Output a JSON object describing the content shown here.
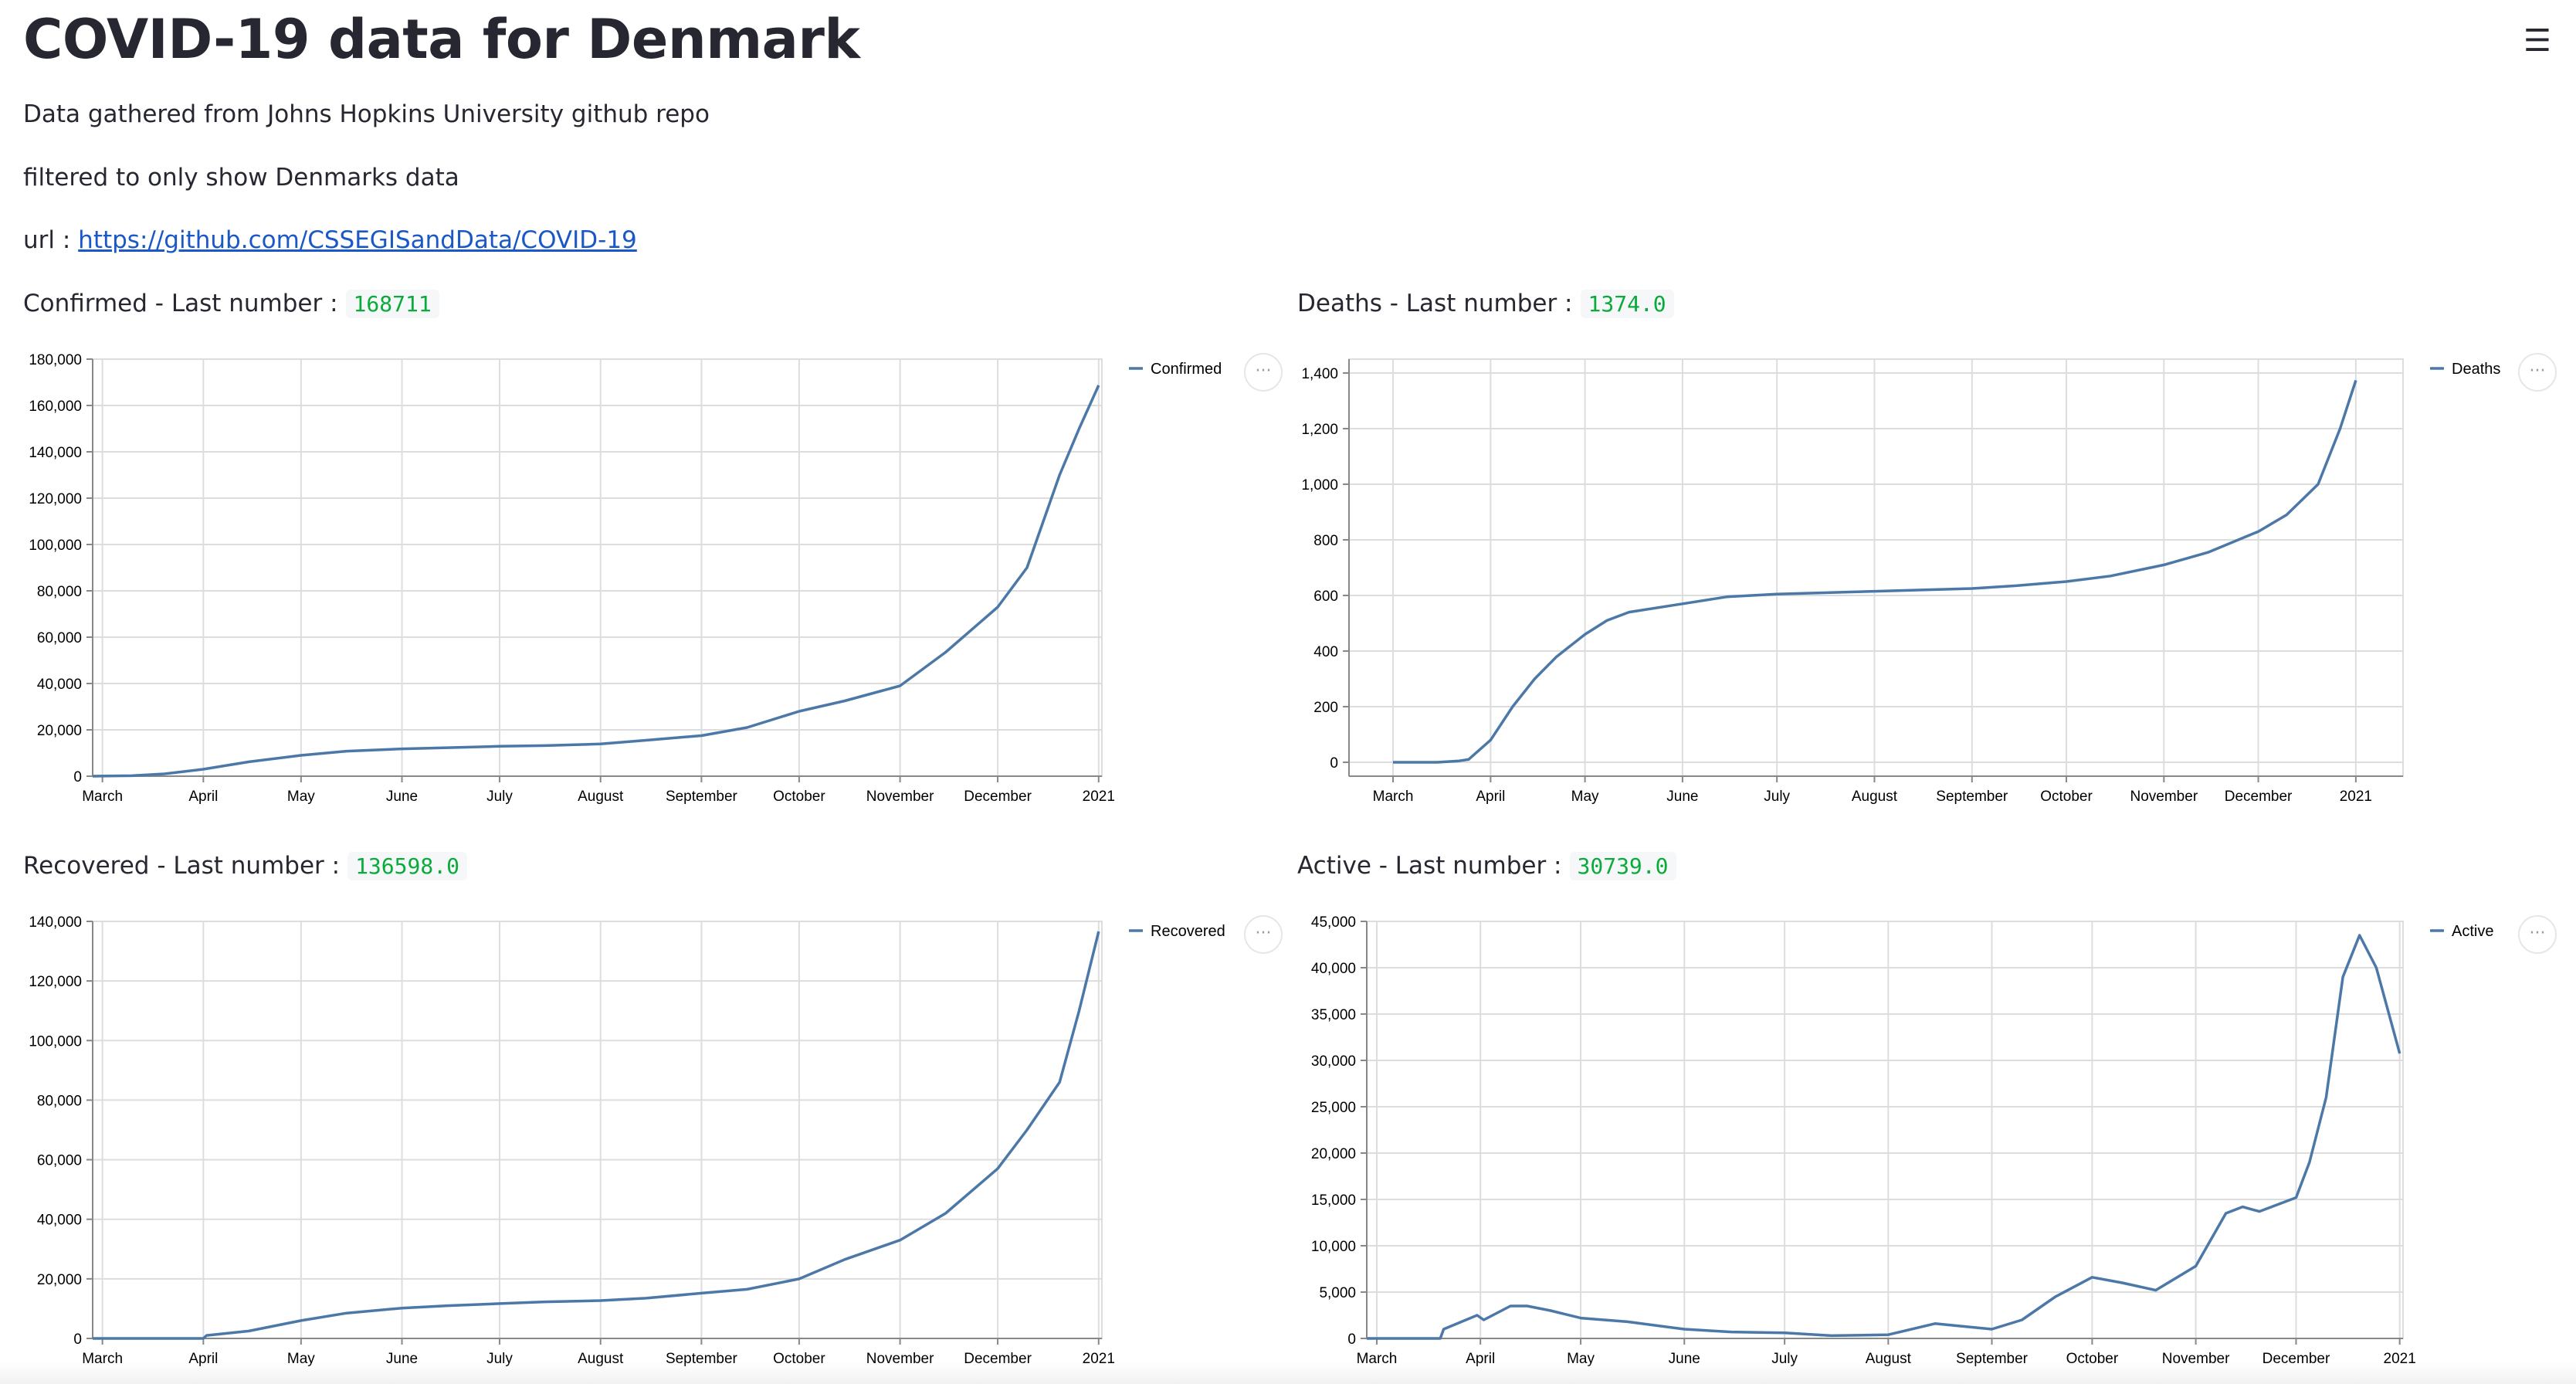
{
  "page": {
    "title": "COVID-19 data for Denmark",
    "lines": [
      "Data gathered from Johns Hopkins University github repo",
      "filtered to only show Denmarks data"
    ],
    "url_label": "url :",
    "url": "https://github.com/CSSEGISandData/COVID-19",
    "menu_icon": "hamburger-icon",
    "chart_menu_icon": "ellipsis-icon",
    "chart_menu_glyph": "···"
  },
  "style": {
    "line_color": "#4c78a8",
    "code_color": "#09ab3b",
    "link_color": "#1a57c7"
  },
  "chart_data": [
    {
      "type": "line",
      "header": "Confirmed - Last number :",
      "last_number": "168711",
      "series": [
        {
          "name": "Confirmed",
          "points": [
            [
              "2020-02-27",
              0
            ],
            [
              "2020-03-10",
              200
            ],
            [
              "2020-03-20",
              1000
            ],
            [
              "2020-04-01",
              3000
            ],
            [
              "2020-04-15",
              6200
            ],
            [
              "2020-05-01",
              9000
            ],
            [
              "2020-05-15",
              10800
            ],
            [
              "2020-06-01",
              11800
            ],
            [
              "2020-06-15",
              12300
            ],
            [
              "2020-07-01",
              12900
            ],
            [
              "2020-07-15",
              13200
            ],
            [
              "2020-08-01",
              13900
            ],
            [
              "2020-08-15",
              15500
            ],
            [
              "2020-09-01",
              17500
            ],
            [
              "2020-09-15",
              21000
            ],
            [
              "2020-10-01",
              28000
            ],
            [
              "2020-10-15",
              32500
            ],
            [
              "2020-11-01",
              39000
            ],
            [
              "2020-11-15",
              53500
            ],
            [
              "2020-12-01",
              73000
            ],
            [
              "2020-12-10",
              90000
            ],
            [
              "2020-12-15",
              110000
            ],
            [
              "2020-12-20",
              130000
            ],
            [
              "2020-12-26",
              150000
            ],
            [
              "2021-01-01",
              168711
            ]
          ]
        }
      ],
      "xticks": [
        [
          "2020-03-01",
          "March"
        ],
        [
          "2020-04-01",
          "April"
        ],
        [
          "2020-05-01",
          "May"
        ],
        [
          "2020-06-01",
          "June"
        ],
        [
          "2020-07-01",
          "July"
        ],
        [
          "2020-08-01",
          "August"
        ],
        [
          "2020-09-01",
          "September"
        ],
        [
          "2020-10-01",
          "October"
        ],
        [
          "2020-11-01",
          "November"
        ],
        [
          "2020-12-01",
          "December"
        ],
        [
          "2021-01-01",
          "2021"
        ]
      ],
      "yticks": [
        0,
        20000,
        40000,
        60000,
        80000,
        100000,
        120000,
        140000,
        160000,
        180000
      ],
      "ytick_labels": [
        "0",
        "20,000",
        "40,000",
        "60,000",
        "80,000",
        "100,000",
        "120,000",
        "140,000",
        "160,000",
        "180,000"
      ],
      "xlim": [
        "2020-02-27",
        "2021-01-02"
      ],
      "ylim": [
        0,
        180000
      ],
      "grid": true,
      "legend": "top-right"
    },
    {
      "type": "line",
      "header": "Deaths - Last number :",
      "last_number": "1374.0",
      "series": [
        {
          "name": "Deaths",
          "points": [
            [
              "2020-03-01",
              0
            ],
            [
              "2020-03-15",
              0
            ],
            [
              "2020-03-22",
              5
            ],
            [
              "2020-03-25",
              10
            ],
            [
              "2020-04-01",
              80
            ],
            [
              "2020-04-08",
              200
            ],
            [
              "2020-04-15",
              300
            ],
            [
              "2020-04-22",
              380
            ],
            [
              "2020-05-01",
              460
            ],
            [
              "2020-05-08",
              510
            ],
            [
              "2020-05-15",
              540
            ],
            [
              "2020-06-01",
              570
            ],
            [
              "2020-06-15",
              595
            ],
            [
              "2020-07-01",
              605
            ],
            [
              "2020-08-01",
              615
            ],
            [
              "2020-09-01",
              625
            ],
            [
              "2020-09-15",
              635
            ],
            [
              "2020-10-01",
              650
            ],
            [
              "2020-10-15",
              670
            ],
            [
              "2020-11-01",
              710
            ],
            [
              "2020-11-15",
              755
            ],
            [
              "2020-12-01",
              830
            ],
            [
              "2020-12-10",
              890
            ],
            [
              "2020-12-20",
              1000
            ],
            [
              "2020-12-27",
              1200
            ],
            [
              "2021-01-01",
              1374
            ]
          ]
        }
      ],
      "xticks": [
        [
          "2020-03-01",
          "March"
        ],
        [
          "2020-04-01",
          "April"
        ],
        [
          "2020-05-01",
          "May"
        ],
        [
          "2020-06-01",
          "June"
        ],
        [
          "2020-07-01",
          "July"
        ],
        [
          "2020-08-01",
          "August"
        ],
        [
          "2020-09-01",
          "September"
        ],
        [
          "2020-10-01",
          "October"
        ],
        [
          "2020-11-01",
          "November"
        ],
        [
          "2020-12-01",
          "December"
        ],
        [
          "2021-01-01",
          "2021"
        ]
      ],
      "yticks": [
        0,
        200,
        400,
        600,
        800,
        1000,
        1200,
        1400
      ],
      "ytick_labels": [
        "0",
        "200",
        "400",
        "600",
        "800",
        "1,000",
        "1,200",
        "1,400"
      ],
      "xlim": [
        "2020-02-16",
        "2021-01-16"
      ],
      "ylim": [
        -50,
        1450
      ],
      "grid": true,
      "legend": "top-right"
    },
    {
      "type": "line",
      "header": "Recovered - Last number :",
      "last_number": "136598.0",
      "series": [
        {
          "name": "Recovered",
          "points": [
            [
              "2020-02-27",
              0
            ],
            [
              "2020-04-01",
              0
            ],
            [
              "2020-04-02",
              1000
            ],
            [
              "2020-04-15",
              2500
            ],
            [
              "2020-05-01",
              6000
            ],
            [
              "2020-05-15",
              8500
            ],
            [
              "2020-06-01",
              10200
            ],
            [
              "2020-06-15",
              11000
            ],
            [
              "2020-07-01",
              11700
            ],
            [
              "2020-07-15",
              12300
            ],
            [
              "2020-08-01",
              12700
            ],
            [
              "2020-08-15",
              13500
            ],
            [
              "2020-09-01",
              15200
            ],
            [
              "2020-09-15",
              16500
            ],
            [
              "2020-10-01",
              20000
            ],
            [
              "2020-10-15",
              26500
            ],
            [
              "2020-11-01",
              33000
            ],
            [
              "2020-11-15",
              42000
            ],
            [
              "2020-12-01",
              57000
            ],
            [
              "2020-12-10",
              70000
            ],
            [
              "2020-12-20",
              86000
            ],
            [
              "2020-12-26",
              110000
            ],
            [
              "2021-01-01",
              136598
            ]
          ]
        }
      ],
      "xticks": [
        [
          "2020-03-01",
          "March"
        ],
        [
          "2020-04-01",
          "April"
        ],
        [
          "2020-05-01",
          "May"
        ],
        [
          "2020-06-01",
          "June"
        ],
        [
          "2020-07-01",
          "July"
        ],
        [
          "2020-08-01",
          "August"
        ],
        [
          "2020-09-01",
          "September"
        ],
        [
          "2020-10-01",
          "October"
        ],
        [
          "2020-11-01",
          "November"
        ],
        [
          "2020-12-01",
          "December"
        ],
        [
          "2021-01-01",
          "2021"
        ]
      ],
      "yticks": [
        0,
        20000,
        40000,
        60000,
        80000,
        100000,
        120000,
        140000
      ],
      "ytick_labels": [
        "0",
        "20,000",
        "40,000",
        "60,000",
        "80,000",
        "100,000",
        "120,000",
        "140,000"
      ],
      "xlim": [
        "2020-02-27",
        "2021-01-02"
      ],
      "ylim": [
        0,
        140000
      ],
      "grid": true,
      "legend": "top-right"
    },
    {
      "type": "line",
      "header": "Active - Last number :",
      "last_number": "30739.0",
      "series": [
        {
          "name": "Active",
          "points": [
            [
              "2020-02-27",
              0
            ],
            [
              "2020-03-20",
              0
            ],
            [
              "2020-03-21",
              1000
            ],
            [
              "2020-03-31",
              2500
            ],
            [
              "2020-04-02",
              2000
            ],
            [
              "2020-04-10",
              3500
            ],
            [
              "2020-04-15",
              3500
            ],
            [
              "2020-04-22",
              3000
            ],
            [
              "2020-05-01",
              2200
            ],
            [
              "2020-05-15",
              1800
            ],
            [
              "2020-06-01",
              1000
            ],
            [
              "2020-06-15",
              700
            ],
            [
              "2020-07-01",
              600
            ],
            [
              "2020-07-15",
              300
            ],
            [
              "2020-08-01",
              400
            ],
            [
              "2020-08-15",
              1600
            ],
            [
              "2020-09-01",
              1000
            ],
            [
              "2020-09-10",
              2000
            ],
            [
              "2020-09-20",
              4500
            ],
            [
              "2020-10-01",
              6600
            ],
            [
              "2020-10-10",
              6000
            ],
            [
              "2020-10-20",
              5200
            ],
            [
              "2020-11-01",
              7800
            ],
            [
              "2020-11-10",
              13500
            ],
            [
              "2020-11-15",
              14200
            ],
            [
              "2020-11-20",
              13700
            ],
            [
              "2020-12-01",
              15200
            ],
            [
              "2020-12-05",
              19000
            ],
            [
              "2020-12-10",
              26000
            ],
            [
              "2020-12-15",
              39000
            ],
            [
              "2020-12-20",
              43500
            ],
            [
              "2020-12-25",
              40000
            ],
            [
              "2021-01-01",
              30739
            ]
          ]
        }
      ],
      "xticks": [
        [
          "2020-03-01",
          "March"
        ],
        [
          "2020-04-01",
          "April"
        ],
        [
          "2020-05-01",
          "May"
        ],
        [
          "2020-06-01",
          "June"
        ],
        [
          "2020-07-01",
          "July"
        ],
        [
          "2020-08-01",
          "August"
        ],
        [
          "2020-09-01",
          "September"
        ],
        [
          "2020-10-01",
          "October"
        ],
        [
          "2020-11-01",
          "November"
        ],
        [
          "2020-12-01",
          "December"
        ],
        [
          "2021-01-01",
          "2021"
        ]
      ],
      "yticks": [
        0,
        5000,
        10000,
        15000,
        20000,
        25000,
        30000,
        35000,
        40000,
        45000
      ],
      "ytick_labels": [
        "0",
        "5,000",
        "10,000",
        "15,000",
        "20,000",
        "25,000",
        "30,000",
        "35,000",
        "40,000",
        "45,000"
      ],
      "xlim": [
        "2020-02-27",
        "2021-01-02"
      ],
      "ylim": [
        0,
        45000
      ],
      "grid": true,
      "legend": "top-right"
    }
  ]
}
